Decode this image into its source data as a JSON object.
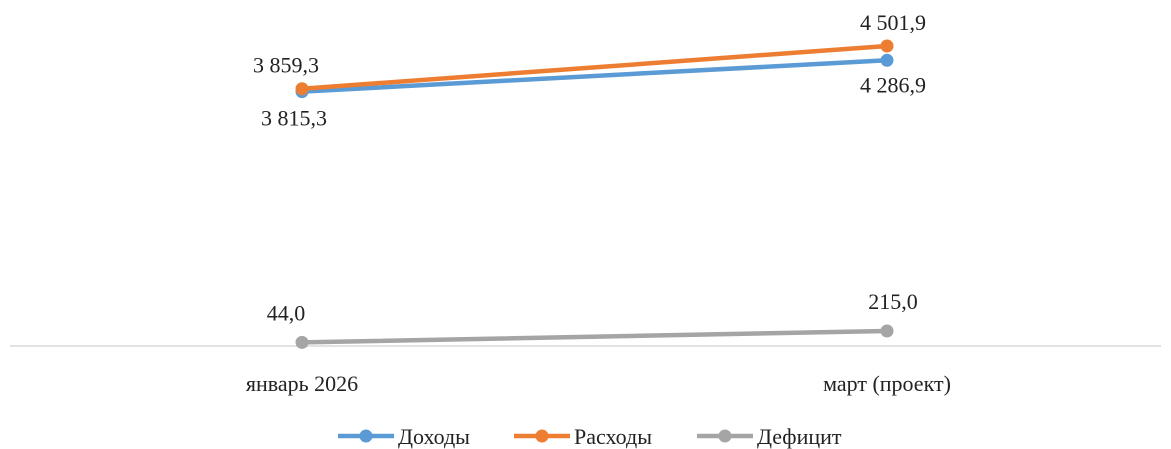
{
  "chart_data": {
    "type": "line",
    "title": "",
    "xlabel": "",
    "ylabel": "",
    "categories": [
      "январь 2026",
      "март (проект)"
    ],
    "ylim": [
      0,
      4600
    ],
    "grid": false,
    "legend_position": "bottom",
    "series": [
      {
        "name": "Доходы",
        "color": "#5B9BD5",
        "values": [
          3815.3,
          4286.9
        ],
        "labels": [
          "3 815,3",
          "4 286,9"
        ]
      },
      {
        "name": "Расходы",
        "color": "#ED7D31",
        "values": [
          3859.3,
          4501.9
        ],
        "labels": [
          "3 859,3",
          "4 501,9"
        ]
      },
      {
        "name": "Дефицит",
        "color": "#A5A5A5",
        "values": [
          44.0,
          215.0
        ],
        "labels": [
          "44,0",
          "215,0"
        ]
      }
    ]
  }
}
